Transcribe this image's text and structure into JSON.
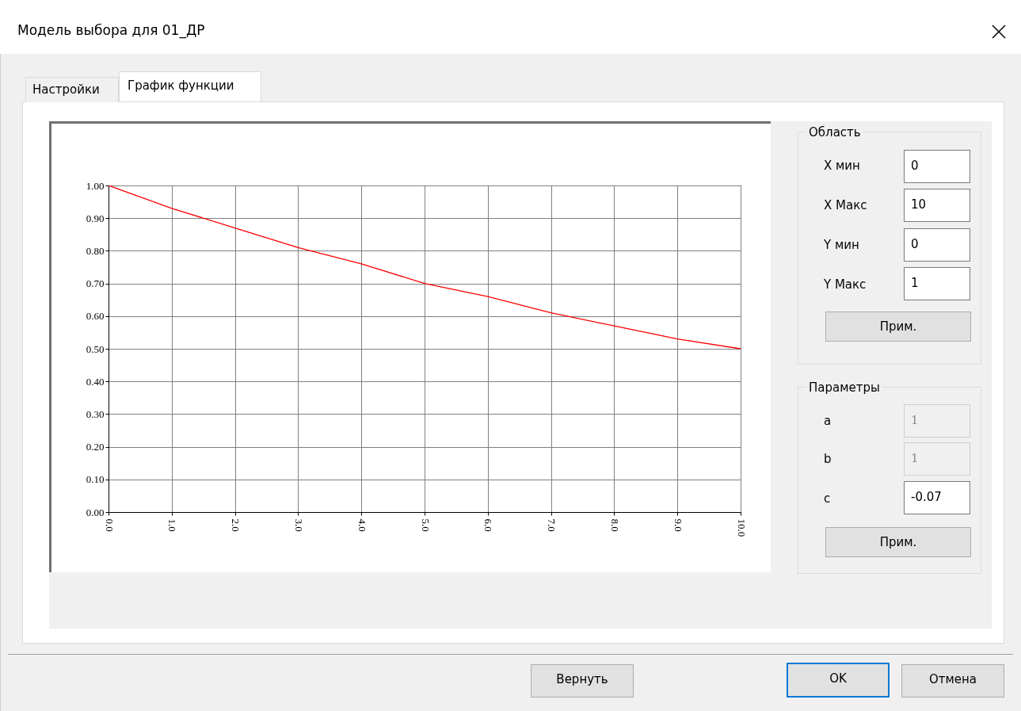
{
  "chart_data": [
    {
      "type": "line",
      "x": [
        0,
        1,
        2,
        3,
        4,
        5,
        6,
        7,
        8,
        9,
        10
      ],
      "series": [
        {
          "color": "#ff0000",
          "values": [
            1.0,
            0.93,
            0.87,
            0.81,
            0.76,
            0.7,
            0.66,
            0.61,
            0.57,
            0.53,
            0.5
          ]
        }
      ],
      "xlim": [
        0,
        10
      ],
      "ylim": [
        0,
        1
      ],
      "xticks": [
        {
          "value": 0,
          "label": "0.0"
        },
        {
          "value": 1,
          "label": "1.0"
        },
        {
          "value": 2,
          "label": "2.0"
        },
        {
          "value": 3,
          "label": "3.0"
        },
        {
          "value": 4,
          "label": "4.0"
        },
        {
          "value": 5,
          "label": "5.0"
        },
        {
          "value": 6,
          "label": "6.0"
        },
        {
          "value": 7,
          "label": "7.0"
        },
        {
          "value": 8,
          "label": "8.0"
        },
        {
          "value": 9,
          "label": "9.0"
        },
        {
          "value": 10,
          "label": "10.0"
        }
      ],
      "yticks": [
        {
          "value": 0,
          "label": "0.00"
        },
        {
          "value": 0.1,
          "label": "0.10"
        },
        {
          "value": 0.2,
          "label": "0.20"
        },
        {
          "value": 0.3,
          "label": "0.30"
        },
        {
          "value": 0.4,
          "label": "0.40"
        },
        {
          "value": 0.5,
          "label": "0.50"
        },
        {
          "value": 0.6,
          "label": "0.60"
        },
        {
          "value": 0.7,
          "label": "0.70"
        },
        {
          "value": 0.8,
          "label": "0.80"
        },
        {
          "value": 0.9,
          "label": "0.90"
        },
        {
          "value": 1,
          "label": "1.00"
        }
      ],
      "grid": true
    },
    {
      "type": "other",
      "annotations": [
        "Модель выбора для 01_ДР",
        "Настройки",
        "График функции",
        "Область",
        "X мин",
        "0",
        "X Макс",
        "10",
        "Y мин",
        "0",
        "Y Макс",
        "1",
        "Прим.",
        "Параметры",
        "a",
        "1",
        "b",
        "1",
        "c",
        "-0.07",
        "Прим.",
        "Вернуть",
        "OK",
        "Отмена"
      ]
    }
  ]
}
